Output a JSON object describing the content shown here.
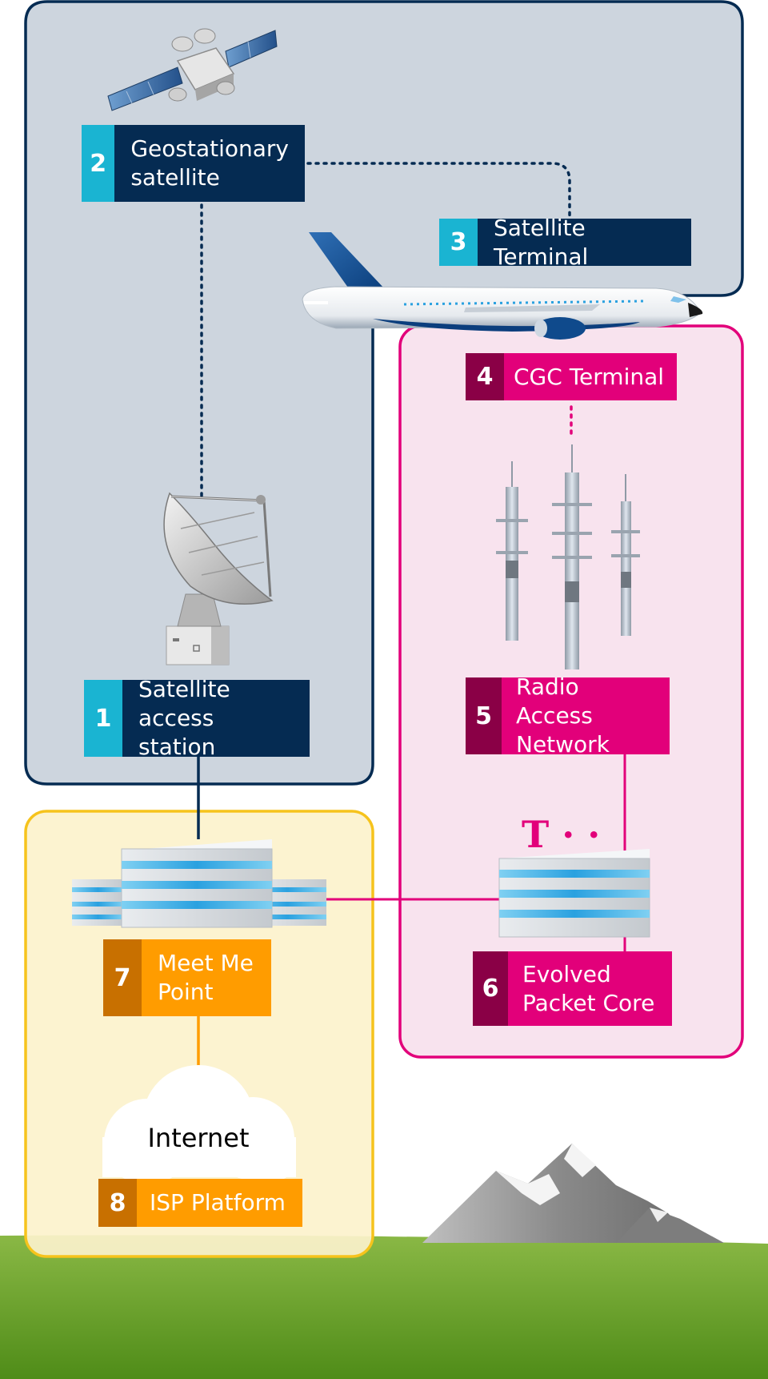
{
  "labels": {
    "n1": {
      "num": "1",
      "text": "Satellite access station"
    },
    "n2": {
      "num": "2",
      "text": "Geostationary satellite"
    },
    "n3": {
      "num": "3",
      "text": "Satellite Terminal"
    },
    "n4": {
      "num": "4",
      "text": "CGC Terminal"
    },
    "n5": {
      "num": "5",
      "text": "Radio Access Network"
    },
    "n6": {
      "num": "6",
      "text": "Evolved Packet Core"
    },
    "n7": {
      "num": "7",
      "text": "Meet Me Point"
    },
    "n8": {
      "num": "8",
      "text": "ISP Platform"
    }
  },
  "cloud_text": "Internet",
  "logo_text": "T · ·",
  "colors": {
    "satellite_zone_fill": "#cdd5de",
    "satellite_zone_border": "#052b52",
    "terrestrial_zone_fill": "#f8e3ee",
    "terrestrial_zone_border": "#e2007a",
    "internet_zone_fill": "#fcf2cc",
    "internet_zone_border": "#f6c31c",
    "teal_accent": "#1ab4d2",
    "navy": "#052b52",
    "magenta": "#e2007a",
    "orange": "#ff9c00",
    "grass": "#5f9a22"
  }
}
